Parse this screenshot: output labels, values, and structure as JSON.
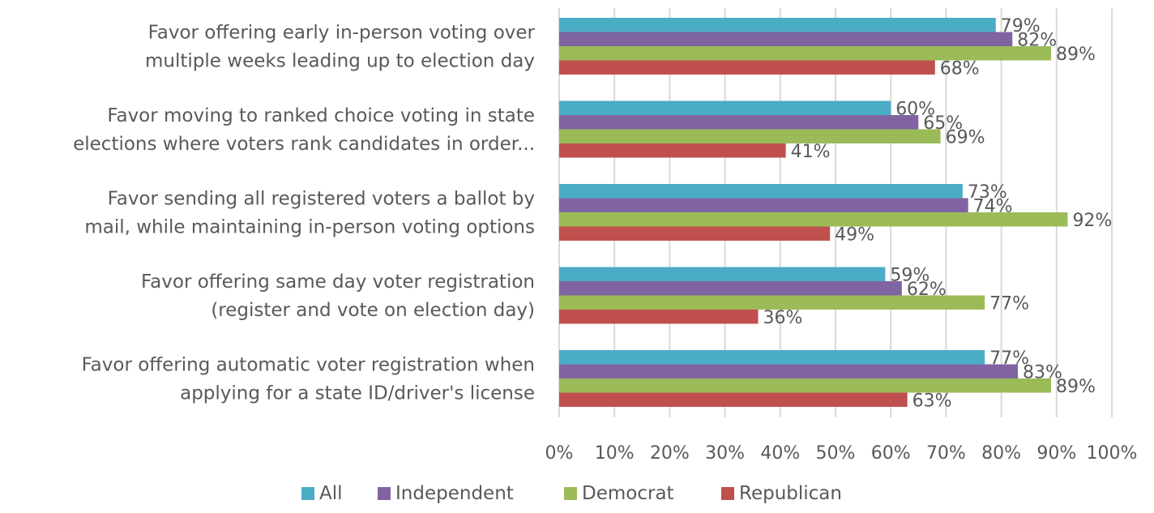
{
  "chart_data": {
    "type": "bar",
    "orientation": "horizontal",
    "categories": [
      [
        "Favor offering early in-person voting over",
        "multiple weeks leading up to election day"
      ],
      [
        "Favor moving to ranked choice voting in state",
        "elections where voters rank candidates in order..."
      ],
      [
        "Favor sending all registered voters a ballot by",
        "mail, while maintaining in-person voting options"
      ],
      [
        "Favor offering same day voter registration",
        "(register and vote on election day)"
      ],
      [
        "Favor offering automatic voter registration when",
        "applying for a state ID/driver's license"
      ]
    ],
    "series": [
      {
        "name": "All",
        "color": "#4bacc6",
        "values": [
          79,
          60,
          73,
          59,
          77
        ]
      },
      {
        "name": "Independent",
        "color": "#8064a2",
        "values": [
          82,
          65,
          74,
          62,
          83
        ]
      },
      {
        "name": "Democrat",
        "color": "#9bbb59",
        "values": [
          89,
          69,
          92,
          77,
          89
        ]
      },
      {
        "name": "Republican",
        "color": "#c0504d",
        "values": [
          68,
          41,
          49,
          36,
          63
        ]
      }
    ],
    "xlim": [
      0,
      100
    ],
    "xticks": [
      "0%",
      "10%",
      "20%",
      "30%",
      "40%",
      "50%",
      "60%",
      "70%",
      "80%",
      "90%",
      "100%"
    ],
    "value_suffix": "%",
    "grid": true,
    "legend_position": "bottom"
  }
}
